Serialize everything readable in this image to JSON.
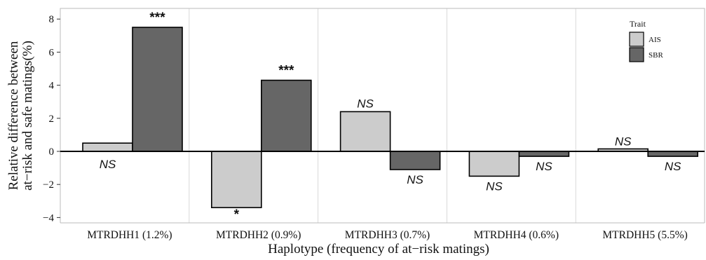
{
  "chart_data": {
    "type": "bar",
    "title": "",
    "xlabel": "Haplotype (frequency of at−risk matings)",
    "ylabel_lines": [
      "Relative difference between",
      "at−risk and safe matings(%)"
    ],
    "ylim": [
      -4.5,
      8.8
    ],
    "yticks": [
      -4,
      -2,
      0,
      2,
      4,
      6,
      8
    ],
    "ytick_labels": [
      "−4",
      "−2",
      "0",
      "2",
      "4",
      "6",
      "8"
    ],
    "grid": "vertical separators between categories",
    "categories": [
      "MTRDHH1 (1.2%)",
      "MTRDHH2 (0.9%)",
      "MTRDHH3 (0.7%)",
      "MTRDHH4 (0.6%)",
      "MTRDHH5 (5.5%)"
    ],
    "series": [
      {
        "name": "AIS",
        "color": "#cccccc",
        "values": [
          0.5,
          -3.4,
          2.4,
          -1.5,
          0.15
        ],
        "significance": [
          "NS",
          "*",
          "NS",
          "NS",
          "NS"
        ]
      },
      {
        "name": "SBR",
        "color": "#666666",
        "values": [
          7.5,
          4.3,
          -1.1,
          -0.3,
          -0.3
        ],
        "significance": [
          "***",
          "***",
          "NS",
          "NS",
          "NS"
        ]
      }
    ],
    "legend": {
      "title": "Trait",
      "position": "top-right",
      "entries": [
        "AIS",
        "SBR"
      ]
    }
  }
}
